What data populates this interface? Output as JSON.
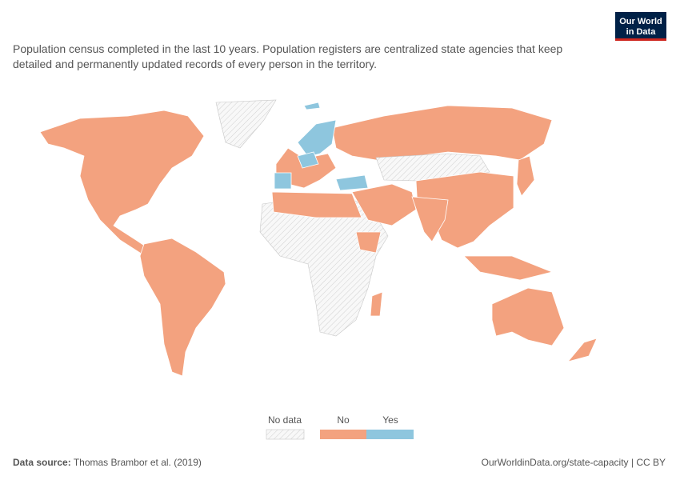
{
  "logo": [
    "Our World",
    "in Data"
  ],
  "subtitle": [
    "Population census completed in the last 10 years. Population registers are centralized state agencies that keep",
    "detailed and permanently updated records of every person in the territory."
  ],
  "legend": {
    "items": [
      {
        "label": "No data"
      },
      {
        "label": "No",
        "color": "#f3a27f"
      },
      {
        "label": "Yes",
        "color": "#8ec6de"
      }
    ]
  },
  "footer": {
    "source_label": "Data source:",
    "source": "Thomas Brambor et al. (2019)",
    "link": "OurWorldinData.org/state-capacity | CC BY"
  }
}
